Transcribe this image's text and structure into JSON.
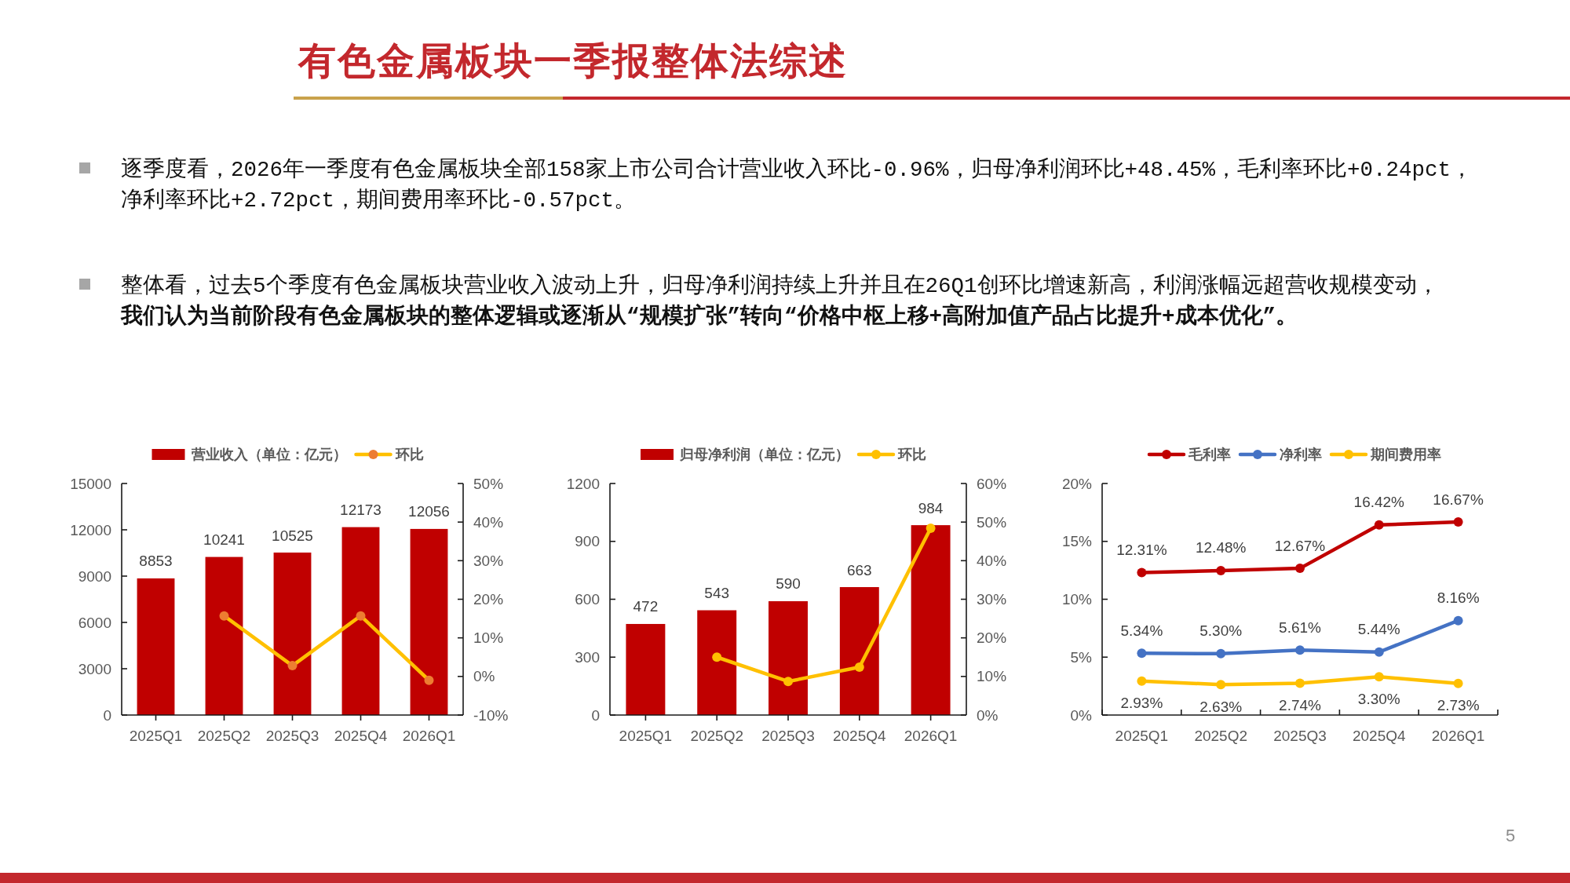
{
  "chart_data": [
    {
      "type": "other",
      "title": "有色金属板块一季报整体法综述",
      "annotations": [
        "逐季度看，2026年一季度有色金属板块全部158家上市公司合计营业收入环比-0.96%，归母净利润环比+48.45%，毛利率环比+0.24pct，净利率环比+2.72pct，期间费用率环比-0.57pct。",
        "整体看，过去5个季度有色金属板块营业收入波动上升，归母净利润持续上升并且在26Q1创环比增速新高，利润涨幅远超营收规模变动，",
        "我们认为当前阶段有色金属板块的整体逻辑或逐渐从“规模扩张”转向“价格中枢上移+高附加值产品占比提升+成本优化”。",
        "5"
      ]
    },
    {
      "type": "bar",
      "categories": [
        "2025Q1",
        "2025Q2",
        "2025Q3",
        "2025Q4",
        "2026Q1"
      ],
      "series": [
        {
          "name": "营业收入（单位：亿元）",
          "type": "bar",
          "color": "#c00000",
          "values": [
            8853,
            10241,
            10525,
            12173,
            12056
          ],
          "value_labels": [
            "8853",
            "10241",
            "10525",
            "12173",
            "12056"
          ]
        },
        {
          "name": "环比",
          "type": "line",
          "axis": "y2",
          "color": "#ffc000",
          "colors": [
            "#ed7d31",
            "#ed7d31",
            "#ed7d31",
            "#ed7d31",
            "#ed7d31"
          ],
          "values": [
            null,
            15.7,
            2.8,
            15.7,
            -1.0
          ]
        }
      ],
      "ylim": [
        0,
        15000
      ],
      "yticks": [
        0,
        3000,
        6000,
        9000,
        12000,
        15000
      ],
      "y2lim": [
        -10,
        50
      ],
      "y2ticks": [
        {
          "value": -10,
          "label": "-10%"
        },
        {
          "value": 0,
          "label": "0%"
        },
        {
          "value": 10,
          "label": "10%"
        },
        {
          "value": 20,
          "label": "20%"
        },
        {
          "value": 30,
          "label": "30%"
        },
        {
          "value": 40,
          "label": "40%"
        },
        {
          "value": 50,
          "label": "50%"
        }
      ],
      "legend": "top",
      "marker": "circle"
    },
    {
      "type": "bar",
      "categories": [
        "2025Q1",
        "2025Q2",
        "2025Q3",
        "2025Q4",
        "2026Q1"
      ],
      "series": [
        {
          "name": "归母净利润（单位：亿元）",
          "type": "bar",
          "color": "#c00000",
          "values": [
            472,
            543,
            590,
            663,
            984
          ],
          "value_labels": [
            "472",
            "543",
            "590",
            "663",
            "984"
          ]
        },
        {
          "name": "环比",
          "type": "line",
          "axis": "y2",
          "color": "#ffc000",
          "values": [
            null,
            15.0,
            8.7,
            12.4,
            48.4
          ]
        }
      ],
      "ylim": [
        0,
        1200
      ],
      "yticks": [
        0,
        300,
        600,
        900,
        1200
      ],
      "y2lim": [
        0,
        60
      ],
      "y2ticks": [
        {
          "value": 0,
          "label": "0%"
        },
        {
          "value": 10,
          "label": "10%"
        },
        {
          "value": 20,
          "label": "20%"
        },
        {
          "value": 30,
          "label": "30%"
        },
        {
          "value": 40,
          "label": "40%"
        },
        {
          "value": 50,
          "label": "50%"
        },
        {
          "value": 60,
          "label": "60%"
        }
      ],
      "legend": "top",
      "marker": "circle"
    },
    {
      "type": "line",
      "categories": [
        "2025Q1",
        "2025Q2",
        "2025Q3",
        "2025Q4",
        "2026Q1"
      ],
      "series": [
        {
          "name": "毛利率",
          "color": "#c00000",
          "values": [
            12.31,
            12.48,
            12.67,
            16.42,
            16.67
          ],
          "value_labels": [
            "12.31%",
            "12.48%",
            "12.67%",
            "16.42%",
            "16.67%"
          ]
        },
        {
          "name": "净利率",
          "color": "#4472c4",
          "values": [
            5.34,
            5.3,
            5.61,
            5.44,
            8.16
          ],
          "value_labels": [
            "5.34%",
            "5.30%",
            "5.61%",
            "5.44%",
            "8.16%"
          ]
        },
        {
          "name": "期间费用率",
          "color": "#ffc000",
          "values": [
            2.93,
            2.63,
            2.74,
            3.3,
            2.73
          ],
          "value_labels": [
            "2.93%",
            "2.63%",
            "2.74%",
            "3.30%",
            "2.73%"
          ]
        }
      ],
      "ylim": [
        0,
        20
      ],
      "yticks": [
        {
          "value": 0,
          "label": "0%"
        },
        {
          "value": 5,
          "label": "5%"
        },
        {
          "value": 10,
          "label": "10%"
        },
        {
          "value": 15,
          "label": "15%"
        },
        {
          "value": 20,
          "label": "20%"
        }
      ],
      "legend": "top",
      "marker": "circle"
    }
  ]
}
